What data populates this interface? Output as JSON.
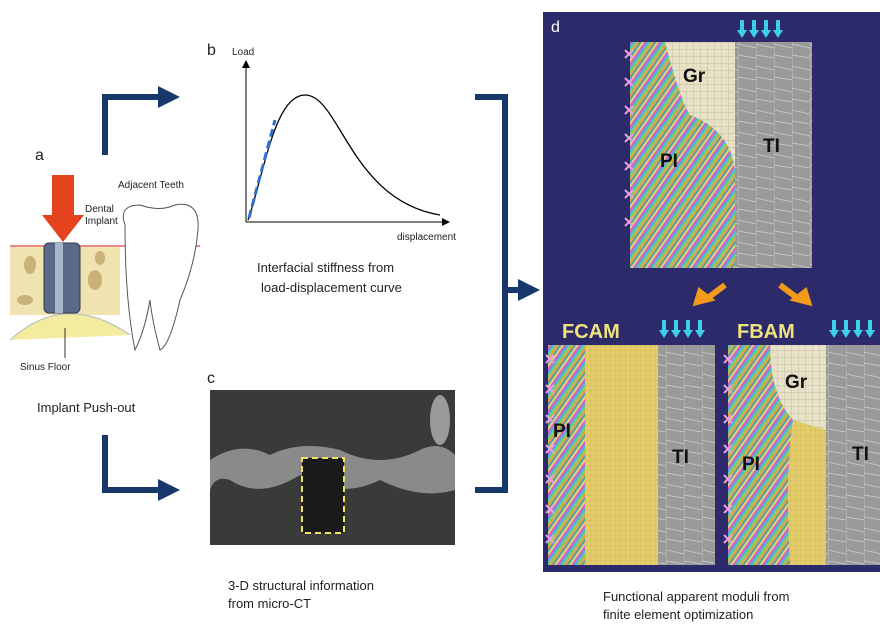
{
  "panel_a": {
    "label": "a",
    "adjacent": "Adjacent Teeth",
    "implant": [
      "Dental",
      "Implant"
    ],
    "sinus": "Sinus Floor",
    "caption": "Implant Push-out"
  },
  "panel_b": {
    "label": "b",
    "y_axis": "Load",
    "x_axis": "displacement",
    "caption": [
      "Interfacial stiffness from",
      "load-displacement curve"
    ]
  },
  "panel_c": {
    "label": "c",
    "caption": [
      "3-D structural information",
      "from micro-CT"
    ]
  },
  "panel_d": {
    "label": "d",
    "top": {
      "gr": "Gr",
      "pi": "PI",
      "ti": "TI"
    },
    "fcam": {
      "title": "FCAM",
      "pi": "PI",
      "ti": "TI"
    },
    "fbam": {
      "title": "FBAM",
      "gr": "Gr",
      "pi": "PI",
      "ti": "TI"
    },
    "caption": [
      "Functional apparent moduli from",
      "finite element optimization"
    ]
  }
}
